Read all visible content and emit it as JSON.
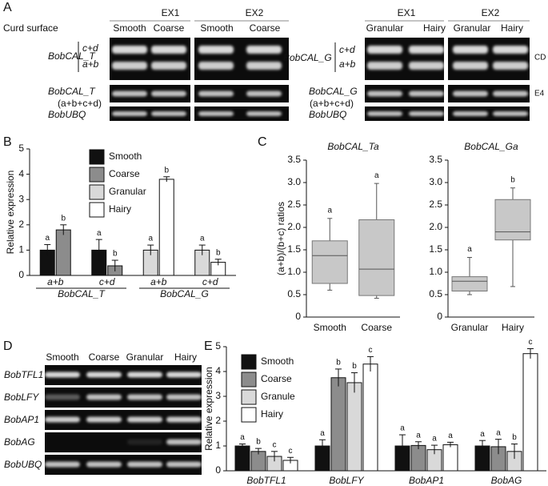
{
  "panel_labels": [
    "A",
    "B",
    "C",
    "D",
    "E"
  ],
  "panel_a": {
    "row_title": "Curd surface",
    "left": {
      "groups": [
        "EX1",
        "EX2"
      ],
      "columns": [
        "Smooth",
        "Coarse",
        "Smooth",
        "Coarse"
      ],
      "gene": "BobCAL_T",
      "bands": [
        "c+d",
        "a+b"
      ],
      "gene_total": "BobCAL_T",
      "total_note": "(a+b+c+d)",
      "control": "BobUBQ"
    },
    "right": {
      "groups": [
        "EX1",
        "EX2"
      ],
      "columns": [
        "Granular",
        "Hairy",
        "Granular",
        "Hairy"
      ],
      "gene": "BobCAL_G",
      "bands": [
        "c+d",
        "a+b"
      ],
      "gene_total": "BobCAL_G",
      "total_note": "(a+b+c+d)",
      "control": "BobUBQ",
      "side_labels": [
        "CD",
        "E4"
      ]
    }
  },
  "chart_data": [
    {
      "type": "bar",
      "categories": [
        "a+b",
        "c+d",
        "a+b",
        "c+d"
      ],
      "groups": [
        "BobCAL_T",
        "BobCAL_G"
      ],
      "ylabel": "Relative expression",
      "ylim": [
        0,
        5
      ],
      "yticks": [
        0,
        1,
        2,
        3,
        4,
        5
      ],
      "legend": "upper left",
      "series": [
        {
          "name": "Smooth",
          "color": "#111111",
          "values": [
            1.0,
            1.0,
            null,
            null
          ],
          "errors": [
            0.22,
            0.42,
            null,
            null
          ],
          "letters": [
            "a",
            "a",
            null,
            null
          ]
        },
        {
          "name": "Coarse",
          "color": "#8c8c8c",
          "values": [
            1.8,
            0.38,
            null,
            null
          ],
          "errors": [
            0.2,
            0.22,
            null,
            null
          ],
          "letters": [
            "b",
            "b",
            null,
            null
          ]
        },
        {
          "name": "Granular",
          "color": "#d9d9d9",
          "values": [
            null,
            null,
            1.0,
            1.0
          ],
          "errors": [
            null,
            null,
            0.2,
            0.2
          ],
          "letters": [
            null,
            null,
            "a",
            "a"
          ]
        },
        {
          "name": "Hairy",
          "color": "#ffffff",
          "values": [
            null,
            null,
            3.8,
            0.52
          ],
          "errors": [
            null,
            null,
            0.1,
            0.12
          ],
          "letters": [
            null,
            null,
            "b",
            "b"
          ]
        }
      ]
    },
    {
      "type": "box",
      "title": "BobCAL_Ta",
      "ylabel": "(a+b)/(b+c) ratios",
      "categories": [
        "Smooth",
        "Coarse"
      ],
      "color": "#c8c8c8",
      "boxes": [
        {
          "min": 0.6,
          "q1": 0.75,
          "median": 1.37,
          "q3": 1.7,
          "max": 2.2
        },
        {
          "min": 0.42,
          "q1": 0.48,
          "median": 1.07,
          "q3": 2.17,
          "max": 2.98
        }
      ],
      "letters": [
        "a",
        "a"
      ],
      "ylim": [
        0,
        3.5
      ],
      "yticks": [
        0,
        0.5,
        {
          "value": 1,
          "label": "1.0"
        },
        1.5,
        {
          "value": 2,
          "label": "2.0"
        },
        2.5,
        {
          "value": 3,
          "label": "3.0"
        },
        3.5
      ]
    },
    {
      "type": "box",
      "title": "BobCAL_Ga",
      "categories": [
        "Granular",
        "Hairy"
      ],
      "color": "#c8c8c8",
      "boxes": [
        {
          "min": 0.5,
          "q1": 0.58,
          "median": 0.8,
          "q3": 0.9,
          "max": 1.33
        },
        {
          "min": 0.68,
          "q1": 1.72,
          "median": 1.9,
          "q3": 2.62,
          "max": 2.88
        }
      ],
      "letters": [
        "a",
        "b"
      ],
      "ylim": [
        0,
        3.5
      ],
      "yticks": [
        0,
        0.5,
        {
          "value": 1,
          "label": "1.0"
        },
        1.5,
        {
          "value": 2,
          "label": "2.0"
        },
        2.5,
        {
          "value": 3,
          "label": "3.0"
        },
        3.5
      ]
    },
    {
      "type": "bar",
      "categories": [
        "BobTFL1",
        "BobLFY",
        "BobAP1",
        "BobAG"
      ],
      "ylabel": "Relative expression",
      "ylim": [
        0,
        5
      ],
      "yticks": [
        0,
        1,
        2,
        3,
        4,
        5
      ],
      "legend": "upper left",
      "series": [
        {
          "name": "Smooth",
          "color": "#111111",
          "values": [
            1.0,
            1.0,
            1.0,
            1.0
          ],
          "errors": [
            0.08,
            0.25,
            0.45,
            0.22
          ],
          "letters": [
            "a",
            "a",
            "a",
            "a"
          ]
        },
        {
          "name": "Coarse",
          "color": "#8c8c8c",
          "values": [
            0.78,
            3.75,
            1.02,
            0.97
          ],
          "errors": [
            0.12,
            0.35,
            0.15,
            0.3
          ],
          "letters": [
            "b",
            "b",
            "a",
            "a"
          ]
        },
        {
          "name": "Granule",
          "color": "#d9d9d9",
          "values": [
            0.58,
            3.55,
            0.85,
            0.78
          ],
          "errors": [
            0.2,
            0.4,
            0.18,
            0.3
          ],
          "letters": [
            "c",
            "b",
            "a",
            "b"
          ]
        },
        {
          "name": "Hairy",
          "color": "#ffffff",
          "values": [
            0.42,
            4.3,
            1.05,
            4.72
          ],
          "errors": [
            0.12,
            0.3,
            0.1,
            0.2
          ],
          "letters": [
            "c",
            "c",
            "a",
            "c"
          ]
        }
      ]
    }
  ],
  "panel_d": {
    "columns": [
      "Smooth",
      "Coarse",
      "Granular",
      "Hairy"
    ],
    "rows": [
      "BobTFL1",
      "BobLFY",
      "BobAP1",
      "BobAG",
      "BobUBQ"
    ]
  }
}
